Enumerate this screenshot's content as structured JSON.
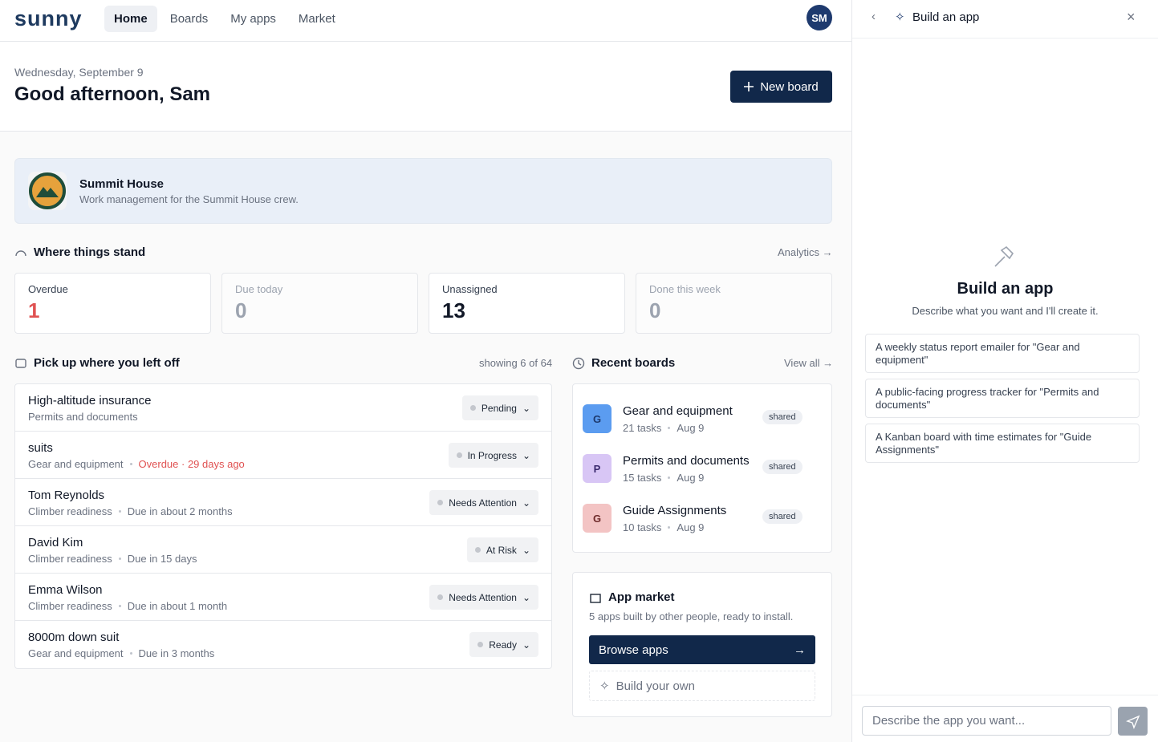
{
  "nav": {
    "logo": "sunny",
    "items": [
      "Home",
      "Boards",
      "My apps",
      "Market"
    ],
    "avatar": "SM"
  },
  "header": {
    "date": "Wednesday, September 9",
    "greeting": "Good afternoon, Sam",
    "button": "New board"
  },
  "workspace": {
    "name": "Summit House",
    "description": "Work management for the Summit House crew."
  },
  "stats": {
    "title": "Where things stand",
    "link": "Analytics",
    "cards": [
      {
        "label": "Overdue",
        "value": "1"
      },
      {
        "label": "Due today",
        "value": "0"
      },
      {
        "label": "Unassigned",
        "value": "13"
      },
      {
        "label": "Done this week",
        "value": "0"
      }
    ]
  },
  "tasks": {
    "title": "Pick up where you left off",
    "count": "showing 6 of 64",
    "items": [
      {
        "title": "High-altitude insurance",
        "board": "Permits and documents",
        "status": "Pending"
      },
      {
        "title": "suits",
        "board": "Gear and equipment",
        "due": "Overdue · 29 days ago",
        "status": "In Progress"
      },
      {
        "title": "Tom Reynolds",
        "board": "Climber readiness",
        "due": "Due in about 2 months",
        "status": "Needs Attention"
      },
      {
        "title": "David Kim",
        "board": "Climber readiness",
        "due": "Due in 15 days",
        "status": "At Risk"
      },
      {
        "title": "Emma Wilson",
        "board": "Climber readiness",
        "due": "Due in about 1 month",
        "status": "Needs Attention"
      },
      {
        "title": "8000m down suit",
        "board": "Gear and equipment",
        "due": "Due in 3 months",
        "status": "Ready"
      }
    ]
  },
  "recent": {
    "title": "Recent boards",
    "link": "View all",
    "boards": [
      {
        "initial": "G",
        "name": "Gear and equipment",
        "tasks": "21 tasks",
        "date": "Aug 9",
        "tag": "shared"
      },
      {
        "initial": "P",
        "name": "Permits and documents",
        "tasks": "15 tasks",
        "date": "Aug 9",
        "tag": "shared"
      },
      {
        "initial": "G",
        "name": "Guide Assignments",
        "tasks": "10 tasks",
        "date": "Aug 9",
        "tag": "shared"
      }
    ]
  },
  "market": {
    "title": "App market",
    "description": "5 apps built by other people, ready to install.",
    "primary": "Browse apps",
    "secondary": "Build your own"
  },
  "panel": {
    "title": "Build an app",
    "heading": "Build an app",
    "subheading": "Describe what you want and I'll create it.",
    "suggestions": [
      "A weekly status report emailer for \"Gear and equipment\"",
      "A public-facing progress tracker for \"Permits and documents\"",
      "A Kanban board with time estimates for \"Guide Assignments\""
    ],
    "placeholder": "Describe the app you want..."
  }
}
